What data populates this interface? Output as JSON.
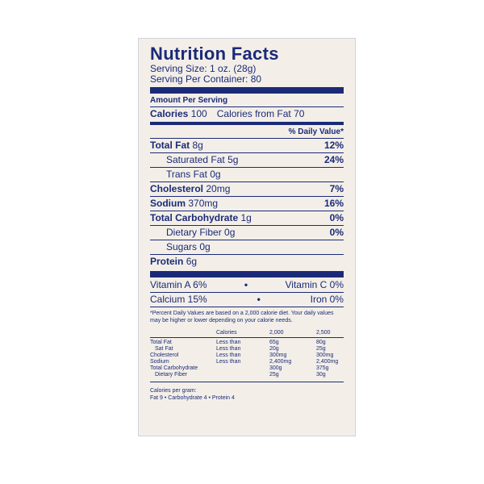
{
  "title": "Nutrition Facts",
  "serving_size": "Serving Size: 1 oz. (28g)",
  "servings_per_container": "Serving Per Container: 80",
  "amount_per_serving": "Amount Per Serving",
  "calories": {
    "label": "Calories",
    "value": "100",
    "from_fat": "Calories from Fat 70"
  },
  "daily_value_header": "% Daily Value*",
  "nutrients": [
    {
      "name": "Total Fat",
      "amount": "8g",
      "dv": "12%"
    },
    {
      "name": "Saturated Fat",
      "amount": "5g",
      "dv": "24%"
    },
    {
      "name": "Trans Fat",
      "amount": "0g",
      "dv": ""
    },
    {
      "name": "Cholesterol",
      "amount": "20mg",
      "dv": "7%"
    },
    {
      "name": "Sodium",
      "amount": "370mg",
      "dv": "16%"
    },
    {
      "name": "Total Carbohydrate",
      "amount": "1g",
      "dv": "0%"
    },
    {
      "name": "Dietary Fiber",
      "amount": "0g",
      "dv": "0%"
    },
    {
      "name": "Sugars",
      "amount": "0g",
      "dv": ""
    },
    {
      "name": "Protein",
      "amount": "6g",
      "dv": ""
    }
  ],
  "vitamins": [
    {
      "left": "Vitamin A 6%",
      "right": "Vitamin C 0%"
    },
    {
      "left": "Calcium 15%",
      "right": "Iron 0%"
    }
  ],
  "footnote": "*Percent Daily Values are based on a 2,000 calorie diet. Your daily values may be higher or lower depending on your calorie needs.",
  "dv_table": {
    "header": [
      "",
      "Calories",
      "2,000",
      "2,500"
    ],
    "rows": [
      [
        "Total Fat",
        "Less than",
        "65g",
        "80g"
      ],
      [
        "Sat Fat",
        "Less than",
        "20g",
        "25g"
      ],
      [
        "Cholesterol",
        "Less than",
        "300mg",
        "300mg"
      ],
      [
        "Sodium",
        "Less than",
        "2,400mg",
        "2,400mg"
      ],
      [
        "Total Carbohydrate",
        "",
        "300g",
        "375g"
      ],
      [
        "Dietary Fiber",
        "",
        "25g",
        "30g"
      ]
    ]
  },
  "calories_per_gram_label": "Calories per gram:",
  "calories_per_gram": "Fat 9 • Carbohydrate 4 • Protein 4",
  "colors": {
    "ink": "#1b2a78",
    "label_bg": "#f3efe8"
  }
}
